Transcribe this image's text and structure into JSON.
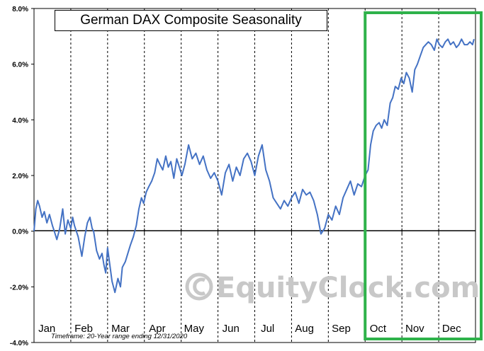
{
  "chart_data": {
    "type": "line",
    "title": "German DAX Composite Seasonality",
    "y_tick_labels": [
      "8.0%",
      "6.0%",
      "4.0%",
      "2.0%",
      "0.0%",
      "-2.0%",
      "-4.0%"
    ],
    "y_ticks": [
      8,
      6,
      4,
      2,
      0,
      -2,
      -4
    ],
    "ylim": [
      -4,
      8
    ],
    "x_tick_labels": [
      "Jan",
      "Feb",
      "Mar",
      "Apr",
      "May",
      "Jun",
      "Jul",
      "Aug",
      "Sep",
      "Oct",
      "Nov",
      "Dec"
    ],
    "xlim": [
      0,
      12
    ],
    "grid": "vertical dashed at month boundaries",
    "highlight": {
      "from": 9,
      "to": 12,
      "color": "#2eb24a"
    },
    "line_color": "#4472c4",
    "timeframe_note": "Timeframe: 20-Year range ending 12/31/2020",
    "watermark": "EquityClock.com",
    "series": [
      {
        "x": [
          0.0,
          0.05,
          0.1,
          0.15,
          0.22,
          0.28,
          0.35,
          0.42,
          0.5,
          0.55,
          0.62,
          0.7,
          0.78,
          0.85,
          0.92,
          1.0,
          1.05,
          1.1,
          1.2,
          1.3,
          1.38,
          1.45,
          1.52,
          1.58,
          1.62,
          1.7,
          1.78,
          1.85,
          1.9,
          1.95,
          2.0,
          2.05,
          2.12,
          2.2,
          2.28,
          2.35,
          2.4,
          2.48,
          2.55,
          2.62,
          2.7,
          2.78,
          2.85,
          2.92,
          2.98,
          3.05,
          3.12,
          3.2,
          3.28,
          3.35,
          3.42,
          3.5,
          3.58,
          3.65,
          3.72,
          3.8,
          3.88,
          3.95,
          4.02,
          4.1,
          4.2,
          4.3,
          4.4,
          4.5,
          4.6,
          4.7,
          4.8,
          4.9,
          5.0,
          5.1,
          5.2,
          5.3,
          5.4,
          5.5,
          5.6,
          5.7,
          5.8,
          5.9,
          6.0,
          6.1,
          6.2,
          6.3,
          6.4,
          6.5,
          6.6,
          6.7,
          6.8,
          6.9,
          7.0,
          7.1,
          7.2,
          7.3,
          7.4,
          7.5,
          7.6,
          7.7,
          7.8,
          7.9,
          8.0,
          8.1,
          8.2,
          8.3,
          8.4,
          8.5,
          8.6,
          8.7,
          8.8,
          8.9,
          9.0,
          9.08,
          9.15,
          9.22,
          9.3,
          9.38,
          9.45,
          9.52,
          9.6,
          9.68,
          9.75,
          9.82,
          9.9,
          9.98,
          10.05,
          10.12,
          10.2,
          10.28,
          10.35,
          10.42,
          10.5,
          10.58,
          10.65,
          10.72,
          10.8,
          10.88,
          10.95,
          11.02,
          11.1,
          11.18,
          11.25,
          11.32,
          11.4,
          11.48,
          11.55,
          11.62,
          11.7,
          11.78,
          11.85,
          11.92,
          11.96
        ],
        "y": [
          0.0,
          0.8,
          1.1,
          0.9,
          0.5,
          0.7,
          0.3,
          0.6,
          0.2,
          0.0,
          -0.3,
          0.1,
          0.8,
          -0.1,
          0.4,
          0.1,
          0.5,
          0.2,
          -0.2,
          -0.9,
          -0.2,
          0.3,
          0.5,
          0.1,
          0.0,
          -0.7,
          -1.0,
          -0.8,
          -1.2,
          -1.5,
          -0.6,
          -1.1,
          -1.8,
          -2.2,
          -1.7,
          -2.0,
          -1.3,
          -1.1,
          -0.8,
          -0.5,
          -0.2,
          0.2,
          0.8,
          1.2,
          1.0,
          1.4,
          1.6,
          1.8,
          2.1,
          2.6,
          2.4,
          2.2,
          2.7,
          2.3,
          2.5,
          1.9,
          2.6,
          2.3,
          2.0,
          2.4,
          3.1,
          2.6,
          2.8,
          2.4,
          2.7,
          2.2,
          1.9,
          2.1,
          1.8,
          1.3,
          2.1,
          2.4,
          1.8,
          2.3,
          2.0,
          2.6,
          2.8,
          2.5,
          2.0,
          2.7,
          3.1,
          2.2,
          1.8,
          1.2,
          1.0,
          0.8,
          1.1,
          0.9,
          1.2,
          1.4,
          1.0,
          1.5,
          1.3,
          1.4,
          1.1,
          0.6,
          -0.1,
          0.1,
          0.6,
          0.4,
          0.9,
          0.6,
          1.2,
          1.5,
          1.8,
          1.3,
          1.7,
          1.6,
          2.0,
          2.2,
          3.1,
          3.6,
          3.8,
          3.9,
          3.7,
          4.0,
          3.8,
          4.6,
          4.8,
          5.2,
          5.1,
          5.5,
          5.3,
          5.7,
          5.5,
          5.0,
          5.8,
          6.0,
          6.3,
          6.6,
          6.7,
          6.8,
          6.7,
          6.5,
          6.9,
          6.7,
          6.6,
          6.8,
          6.9,
          6.7,
          6.8,
          6.6,
          6.7,
          6.9,
          6.7,
          6.7,
          6.8,
          6.7,
          6.9
        ]
      }
    ]
  }
}
